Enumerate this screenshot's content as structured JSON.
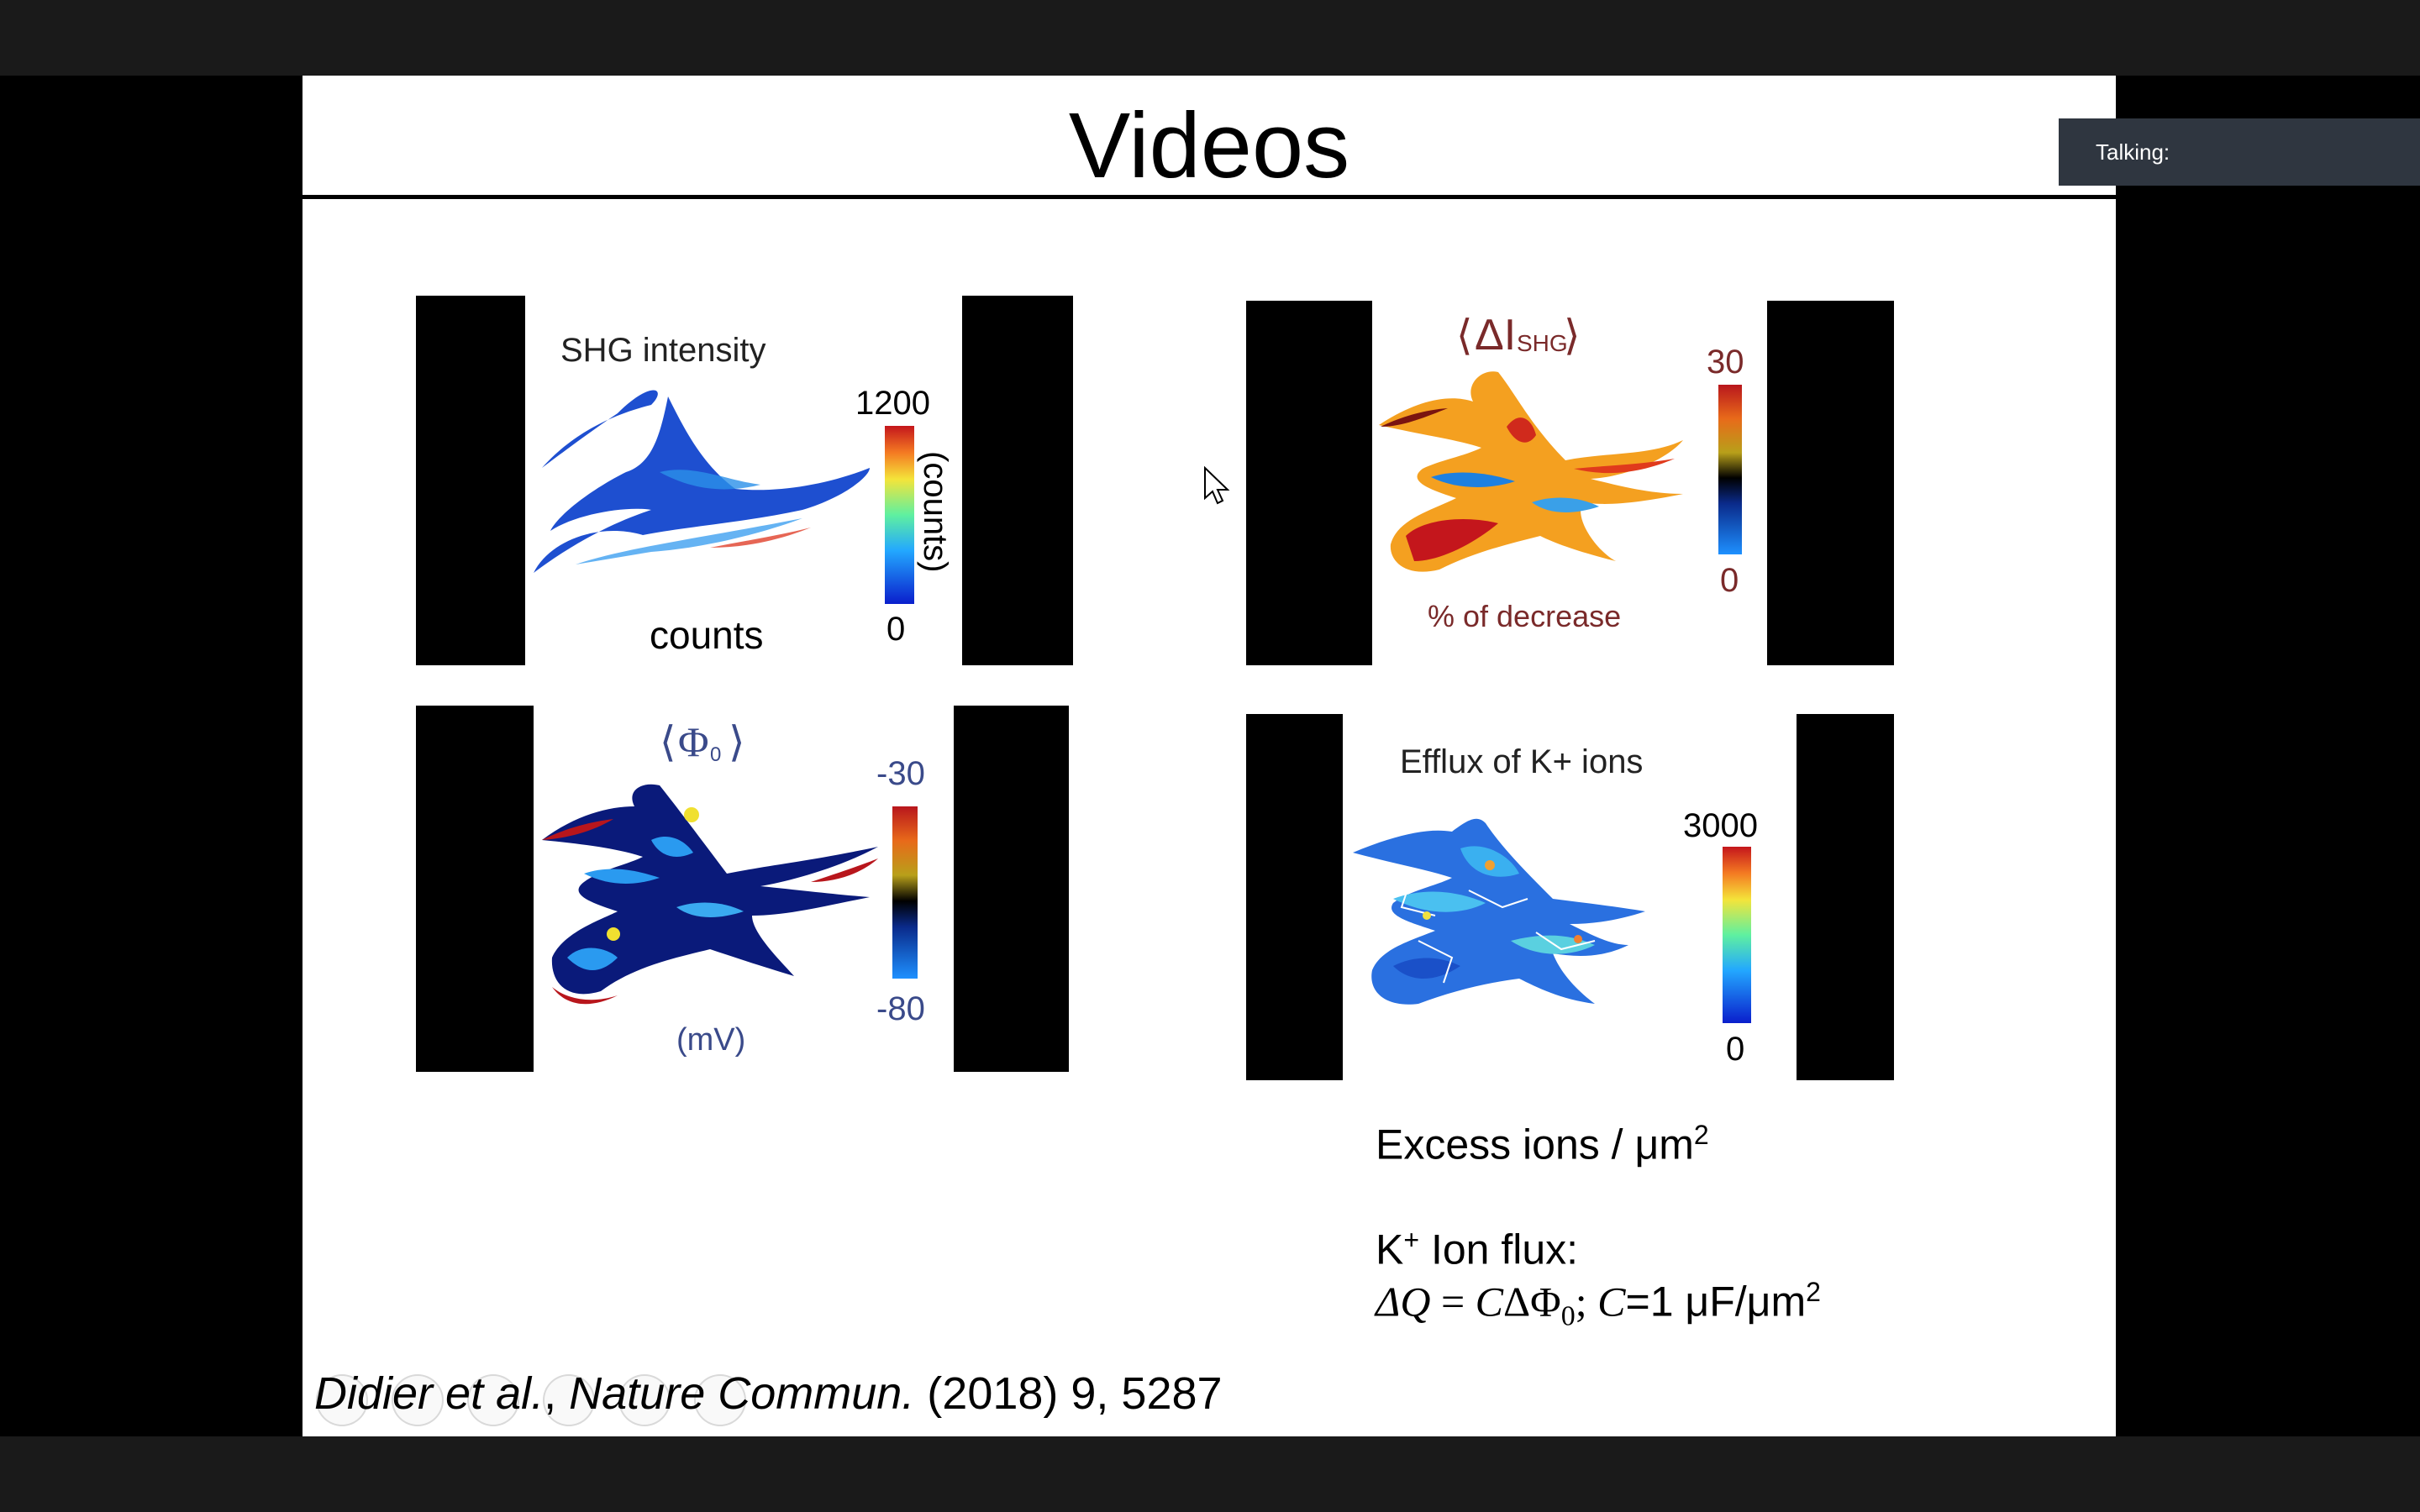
{
  "meeting": {
    "talking_label": "Talking:"
  },
  "slide": {
    "title": "Videos",
    "panels": {
      "shg": {
        "title": "SHG intensity",
        "scale_max": "1200",
        "scale_min": "0",
        "side_label": "(counts)",
        "bottom_label": "counts"
      },
      "delta": {
        "title": "ΔI",
        "title_sub": "SHG",
        "scale_max": "30",
        "scale_min": "0",
        "bottom_label": "% of decrease"
      },
      "phi": {
        "title": "Φ",
        "title_sub": "0",
        "scale_max": "-30",
        "scale_min": "-80",
        "bottom_label": "(mV)"
      },
      "efflux": {
        "title": "Efflux of K+ ions",
        "scale_max": "3000",
        "scale_min": "0"
      }
    },
    "captions": {
      "excess_ions": "Excess ions / μm",
      "excess_ions_sup": "2",
      "flux_label": "K",
      "flux_label_sup": "+",
      "flux_label_rest": " Ion flux:",
      "eq_delta_q": "ΔQ",
      "eq_equals": " = ",
      "eq_c": "C",
      "eq_delta_phi": "ΔΦ",
      "eq_phi_sub": "0",
      "eq_semicolon": "; ",
      "eq_c2": "C",
      "eq_c_value": "=1 μF/μm",
      "eq_c_value_sup": "2"
    },
    "citation": {
      "authors": "Didier et al.",
      "separator": ", ",
      "journal": "Nature Commun.",
      "details": " (2018) 9, 5287"
    }
  },
  "colors": {
    "background": "#000000",
    "slide": "#ffffff",
    "talking_bg": "#2f3640",
    "phi_label": "#3a4a8a",
    "delta_label": "#7a2a2a"
  }
}
